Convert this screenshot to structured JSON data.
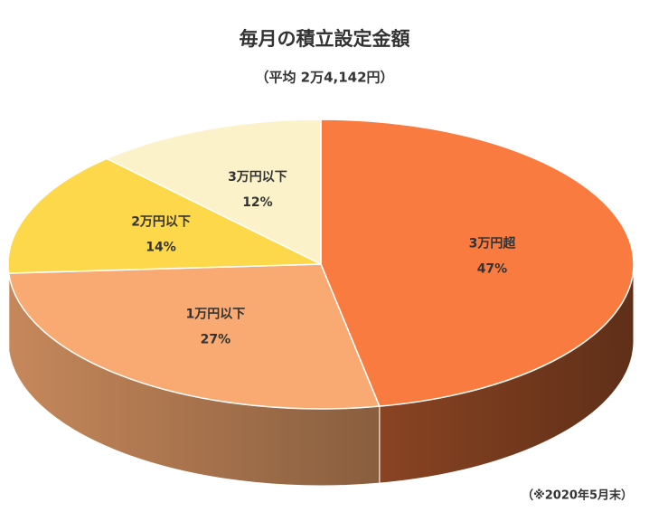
{
  "chart_data": {
    "type": "pie",
    "title": "毎月の積立設定金額",
    "subtitle": "（平均 2万4,142円）",
    "note": "（※2020年5月末）",
    "categories": [
      "3万円超",
      "1万円以下",
      "2万円以下",
      "3万円以下"
    ],
    "values": [
      47,
      27,
      14,
      12
    ],
    "value_labels": [
      "47%",
      "27%",
      "14%",
      "12%"
    ],
    "colors": [
      "#f97b3f",
      "#f8aa72",
      "#fdd84a",
      "#fcf2c9"
    ]
  }
}
